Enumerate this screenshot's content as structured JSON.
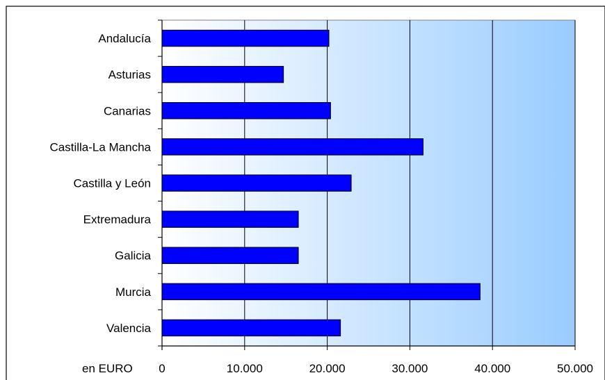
{
  "chart_data": {
    "type": "bar",
    "orientation": "horizontal",
    "categories": [
      "Andalucía",
      "Asturias",
      "Canarias",
      "Castilla-La Mancha",
      "Castilla y León",
      "Extremadura",
      "Galicia",
      "Murcia",
      "Valencia"
    ],
    "series": [
      {
        "values": [
          20200,
          14700,
          20400,
          31600,
          22900,
          16500,
          16500,
          38500,
          21600
        ]
      }
    ],
    "xlim": [
      0,
      50000
    ],
    "x_ticks": [
      0,
      10000,
      20000,
      30000,
      40000,
      50000
    ],
    "x_tick_labels": [
      "0",
      "10.000",
      "20.000",
      "30.000",
      "40.000",
      "50.000"
    ],
    "xlabel": "en EURO",
    "grid": "vertical",
    "legend": "none",
    "colors": {
      "bar_fill": "#0000ff",
      "bar_stroke": "#000000",
      "plot_bg_light": "#ffffff",
      "plot_bg_dark": "#99ccff"
    }
  }
}
